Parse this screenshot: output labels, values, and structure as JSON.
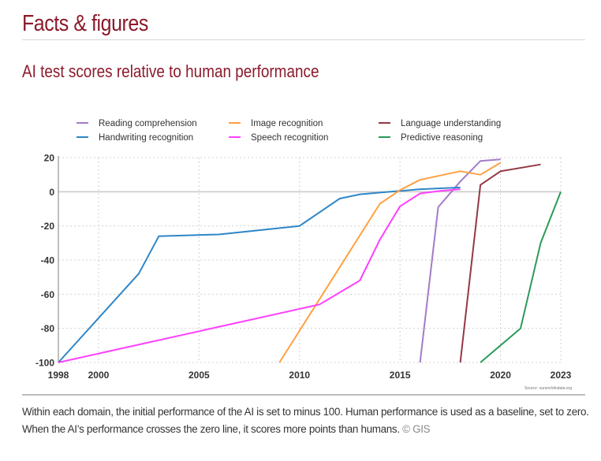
{
  "header": {
    "section_title": "Facts & figures"
  },
  "caption": {
    "text": "Within each domain, the initial performance of the AI is set to minus 100. Human performance is used as a baseline, set to zero. When the AI’s performance crosses the zero line, it scores more points than humans.",
    "copyright": "© GIS"
  },
  "chart_data": {
    "type": "line",
    "title": "AI test scores relative to human performance",
    "xlabel": "",
    "ylabel": "",
    "xlim": [
      1998,
      2023
    ],
    "ylim": [
      -100,
      20
    ],
    "x_ticks": [
      1998,
      2000,
      2005,
      2010,
      2015,
      2020,
      2023
    ],
    "y_ticks": [
      20,
      0,
      -20,
      -40,
      -60,
      -80,
      -100
    ],
    "grid": true,
    "legend_position": "top",
    "source": "Source: ourworldindata.org",
    "series": [
      {
        "name": "Reading comprehension",
        "color": "#a37cc9",
        "points": [
          [
            2016,
            -100
          ],
          [
            2016.9,
            -9
          ],
          [
            2018,
            6
          ],
          [
            2019,
            18
          ],
          [
            2020,
            19
          ]
        ]
      },
      {
        "name": "Handwriting recognition",
        "color": "#2e86c8",
        "points": [
          [
            1998,
            -100
          ],
          [
            2002,
            -48
          ],
          [
            2003,
            -26
          ],
          [
            2006,
            -25
          ],
          [
            2010,
            -20
          ],
          [
            2012,
            -4
          ],
          [
            2013,
            -1.5
          ],
          [
            2014,
            -0.5
          ],
          [
            2015,
            0.5
          ],
          [
            2016,
            1.5
          ],
          [
            2018,
            2.5
          ]
        ]
      },
      {
        "name": "Image recognition",
        "color": "#ffa040",
        "points": [
          [
            2009,
            -100
          ],
          [
            2014,
            -7
          ],
          [
            2015,
            1
          ],
          [
            2016,
            7
          ],
          [
            2018,
            12
          ],
          [
            2019,
            10
          ],
          [
            2020,
            17
          ]
        ]
      },
      {
        "name": "Speech recognition",
        "color": "#ff40ff",
        "points": [
          [
            1998,
            -100
          ],
          [
            2011,
            -66
          ],
          [
            2013,
            -52
          ],
          [
            2014,
            -28
          ],
          [
            2015,
            -8.5
          ],
          [
            2016,
            -1
          ],
          [
            2017,
            0.5
          ],
          [
            2018,
            1.5
          ]
        ]
      },
      {
        "name": "Language understanding",
        "color": "#943842",
        "points": [
          [
            2018,
            -100
          ],
          [
            2019,
            4
          ],
          [
            2020,
            12
          ],
          [
            2022,
            16
          ]
        ]
      },
      {
        "name": "Predictive reasoning",
        "color": "#2a9a58",
        "points": [
          [
            2019,
            -100
          ],
          [
            2021,
            -80
          ],
          [
            2022,
            -30
          ],
          [
            2023,
            0
          ]
        ]
      }
    ]
  }
}
